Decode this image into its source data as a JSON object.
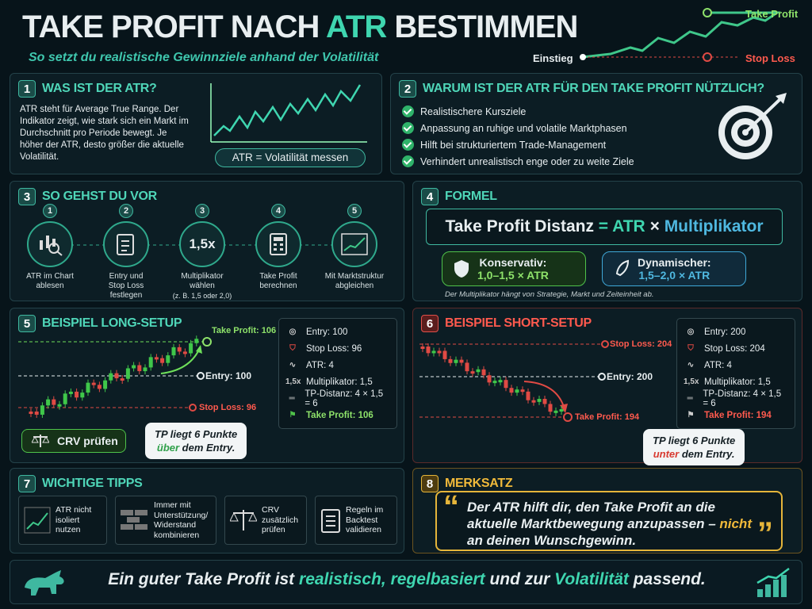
{
  "header": {
    "title": [
      "TAKE PROFIT NACH ",
      "ATR",
      " BESTIMMEN"
    ],
    "subtitle": "So setzt du realistische Gewinnziele anhand der Volatilität",
    "chart": {
      "take_profit": "Take Profit",
      "entry": "Einstieg",
      "stop_loss": "Stop Loss"
    }
  },
  "s1": {
    "num": "1",
    "title": "WAS IST DER ATR?",
    "text": "ATR steht für Average True Range. Der Indikator zeigt, wie stark sich ein Markt im Durchschnitt pro Periode bewegt. Je höher der ATR, desto größer die aktuelle Volatilität.",
    "badge": "ATR = Volatilität messen"
  },
  "s2": {
    "num": "2",
    "title": "WARUM IST DER ATR FÜR DEN TAKE PROFIT NÜTZLICH?",
    "items": [
      "Realistischere Kursziele",
      "Anpassung an ruhige und volatile Marktphasen",
      "Hilft bei strukturiertem Trade-Management",
      "Verhindert unrealistisch enge oder zu weite Ziele"
    ]
  },
  "s3": {
    "num": "3",
    "title": "SO GEHST DU VOR",
    "steps": [
      {
        "num": "1",
        "label": "ATR im Chart ablesen"
      },
      {
        "num": "2",
        "label": "Entry und Stop Loss festlegen"
      },
      {
        "num": "3",
        "icon": "1,5x",
        "label": "Multiplikator wählen",
        "note": "(z. B. 1,5 oder 2,0)"
      },
      {
        "num": "4",
        "label": "Take Profit berechnen"
      },
      {
        "num": "5",
        "label": "Mit Marktstruktur abgleichen"
      }
    ]
  },
  "s4": {
    "num": "4",
    "title": "FORMEL",
    "formula": [
      "Take Profit Distanz",
      "=",
      "ATR",
      "×",
      "Multiplikator"
    ],
    "options": [
      {
        "name": "Konservativ:",
        "range": "1,0–1,5 × ATR"
      },
      {
        "name": "Dynamischer:",
        "range": "1,5–2,0 × ATR"
      }
    ],
    "note": "Der Multiplikator hängt von Strategie, Markt und Zeiteinheit ab."
  },
  "s5": {
    "num": "5",
    "title": "BEISPIEL LONG-SETUP",
    "chart": {
      "take_profit": "Take Profit: 106",
      "entry": "Entry: 100",
      "stop_loss": "Stop Loss: 96"
    },
    "button": "CRV prüfen",
    "bubble": [
      "TP liegt 6 Punkte",
      "über",
      " dem Entry."
    ],
    "stats": [
      {
        "label": "Entry: 100"
      },
      {
        "label": "Stop Loss: 96"
      },
      {
        "label": "ATR: 4"
      },
      {
        "icon": "1,5x",
        "label": "Multiplikator: 1,5"
      },
      {
        "label": "TP-Distanz: 4 × 1,5 = 6"
      },
      {
        "label": "Take Profit: 106"
      }
    ]
  },
  "s6": {
    "num": "6",
    "title": "BEISPIEL SHORT-SETUP",
    "chart": {
      "stop_loss": "Stop Loss: 204",
      "entry": "Entry: 200",
      "take_profit": "Take Profit: 194"
    },
    "bubble": [
      "TP liegt 6 Punkte",
      "unter",
      " dem Entry."
    ],
    "stats": [
      {
        "label": "Entry: 200"
      },
      {
        "label": "Stop Loss: 204"
      },
      {
        "label": "ATR: 4"
      },
      {
        "icon": "1,5x",
        "label": "Multiplikator: 1,5"
      },
      {
        "label": "TP-Distanz: 4 × 1,5 = 6"
      },
      {
        "label": "Take Profit: 194"
      }
    ]
  },
  "s7": {
    "num": "7",
    "title": "WICHTIGE TIPPS",
    "tips": [
      "ATR nicht isoliert nutzen",
      "Immer mit Unterstützung/ Widerstand kombinieren",
      "CRV zusätzlich prüfen",
      "Regeln im Backtest validieren"
    ]
  },
  "s8": {
    "num": "8",
    "title": "MERKSATZ",
    "open": "“",
    "close": "”",
    "quote": [
      "Der ATR hilft dir, den Take  Profit an die aktuelle Marktbewegung anzupassen – ",
      "nicht",
      " an deinen Wunschgewinn."
    ]
  },
  "footer": {
    "text": [
      "Ein guter Take Profit ist ",
      "realistisch, regelbasiert",
      " und zur ",
      "Volatilität",
      " passend."
    ]
  }
}
